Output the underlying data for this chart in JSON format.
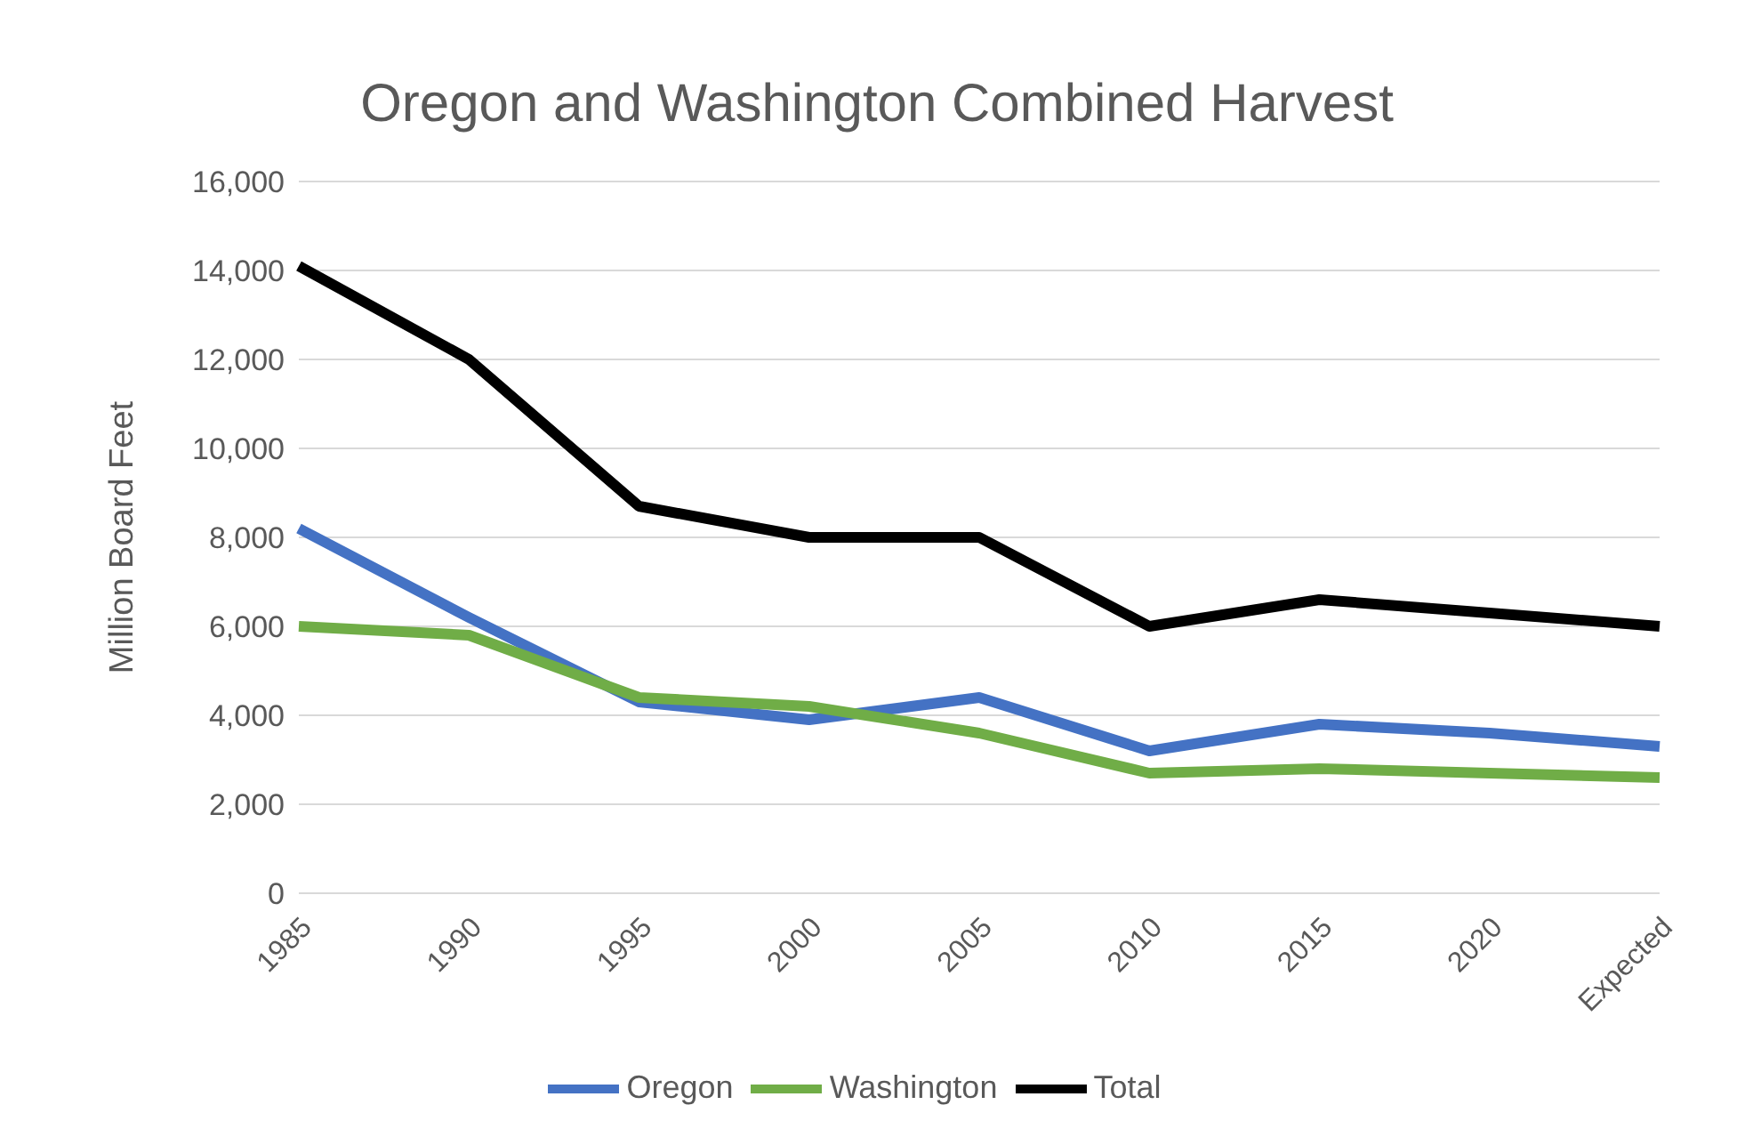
{
  "chart_data": {
    "type": "line",
    "title": "Oregon and Washington Combined Harvest",
    "ylabel": "Million Board Feet",
    "categories": [
      "1985",
      "1990",
      "1995",
      "2000",
      "2005",
      "2010",
      "2015",
      "2020",
      "Expected"
    ],
    "series": [
      {
        "name": "Oregon",
        "color": "#4472c4",
        "values": [
          8200,
          6200,
          4300,
          3900,
          4400,
          3200,
          3800,
          3600,
          3300
        ]
      },
      {
        "name": "Washington",
        "color": "#70ad47",
        "values": [
          6000,
          5800,
          4400,
          4200,
          3600,
          2700,
          2800,
          2700,
          2600
        ]
      },
      {
        "name": "Total",
        "color": "#000000",
        "values": [
          14100,
          12000,
          8700,
          8000,
          8000,
          6000,
          6600,
          6300,
          6000
        ]
      }
    ],
    "ylim": [
      0,
      16000
    ],
    "yticks": [
      0,
      {
        "value": 2000,
        "label": "2,000"
      },
      {
        "value": 4000,
        "label": "4,000"
      },
      {
        "value": 6000,
        "label": "6,000"
      },
      {
        "value": 8000,
        "label": "8,000"
      },
      {
        "value": 10000,
        "label": "10,000"
      },
      {
        "value": 12000,
        "label": "12,000"
      },
      {
        "value": 14000,
        "label": "14,000"
      },
      {
        "value": 16000,
        "label": "16,000"
      }
    ],
    "grid": "y",
    "legend": "bottom",
    "marker": "none",
    "line_style": "solid"
  }
}
